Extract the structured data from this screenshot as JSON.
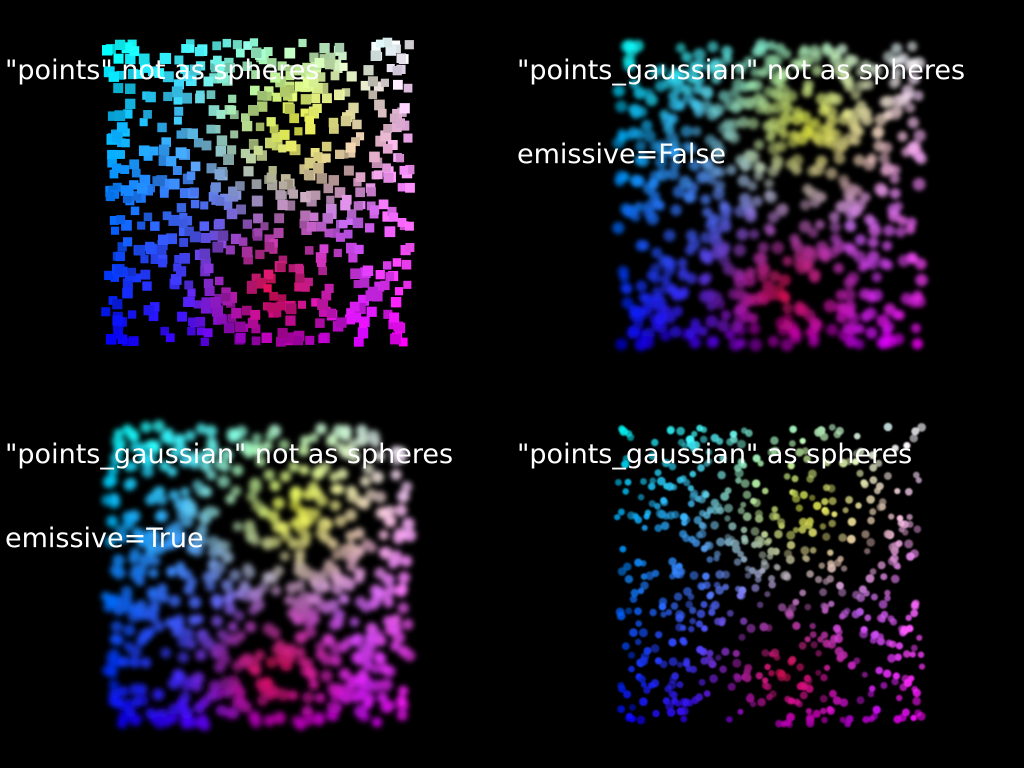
{
  "viewports": [
    {
      "id": "points-not-spheres",
      "title_lines": [
        "\"points\" not as spheres"
      ],
      "style": "square",
      "seed": 11
    },
    {
      "id": "gaussian-not-spheres-emissive-false",
      "title_lines": [
        "\"points_gaussian\" not as spheres",
        "emissive=False"
      ],
      "style": "gaussian-soft",
      "seed": 23
    },
    {
      "id": "gaussian-not-spheres-emissive-true",
      "title_lines": [
        "\"points_gaussian\" not as spheres",
        "emissive=True"
      ],
      "style": "gaussian-emissive",
      "seed": 37
    },
    {
      "id": "gaussian-as-spheres",
      "title_lines": [
        "\"points_gaussian\" as spheres"
      ],
      "style": "sphere",
      "seed": 53
    }
  ],
  "colors": {
    "background": "#000000",
    "text": "#ffffff",
    "corner_bottom_left": "#0000ff",
    "corner_top_left": "#00ffff",
    "corner_top_right": "#ffffff",
    "corner_bottom_right": "#ff00ff",
    "accent_yellow": "#ffff00",
    "accent_red": "#ff0000"
  },
  "point_count": 650
}
